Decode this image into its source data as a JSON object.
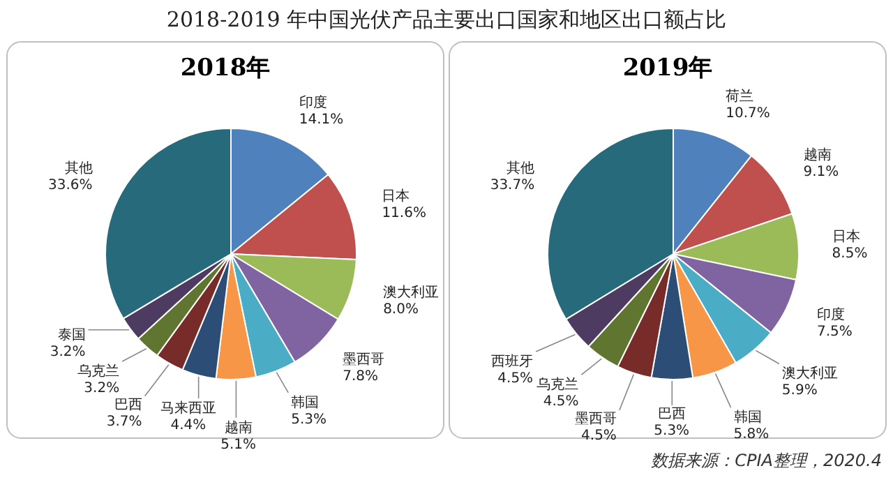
{
  "chart_data": [
    {
      "type": "pie",
      "title": "2018-2019 年中国光伏产品主要出口国家和地区出口额占比",
      "subtitle": "2018年",
      "categories": [
        "印度",
        "日本",
        "澳大利亚",
        "墨西哥",
        "韩国",
        "越南",
        "马来西亚",
        "巴西",
        "乌克兰",
        "泰国",
        "其他"
      ],
      "values": [
        14.1,
        11.6,
        8.0,
        7.8,
        5.3,
        5.1,
        4.4,
        3.7,
        3.2,
        3.2,
        33.6
      ],
      "value_labels": [
        "14.1%",
        "11.6%",
        "8.0%",
        "7.8%",
        "5.3%",
        "5.1%",
        "4.4%",
        "3.7%",
        "3.2%",
        "3.2%",
        "33.6%"
      ],
      "colors": [
        "#4f81bd",
        "#c0504d",
        "#9bbb59",
        "#8064a2",
        "#4bacc6",
        "#f79646",
        "#2c4d75",
        "#772c2a",
        "#5f7530",
        "#4d3b62",
        "#276a7c"
      ]
    },
    {
      "type": "pie",
      "subtitle": "2019年",
      "categories": [
        "荷兰",
        "越南",
        "日本",
        "印度",
        "澳大利亚",
        "韩国",
        "巴西",
        "墨西哥",
        "乌克兰",
        "西班牙",
        "其他"
      ],
      "values": [
        10.7,
        9.1,
        8.5,
        7.5,
        5.9,
        5.8,
        5.3,
        4.5,
        4.5,
        4.5,
        33.7
      ],
      "value_labels": [
        "10.7%",
        "9.1%",
        "8.5%",
        "7.5%",
        "5.9%",
        "5.8%",
        "5.3%",
        "4.5%",
        "4.5%",
        "4.5%",
        "33.7%"
      ],
      "colors": [
        "#4f81bd",
        "#c0504d",
        "#9bbb59",
        "#8064a2",
        "#4bacc6",
        "#f79646",
        "#2c4d75",
        "#772c2a",
        "#5f7530",
        "#4d3b62",
        "#276a7c"
      ],
      "annotations": [
        "数据来源：CPIA整理，2020.4"
      ]
    }
  ]
}
